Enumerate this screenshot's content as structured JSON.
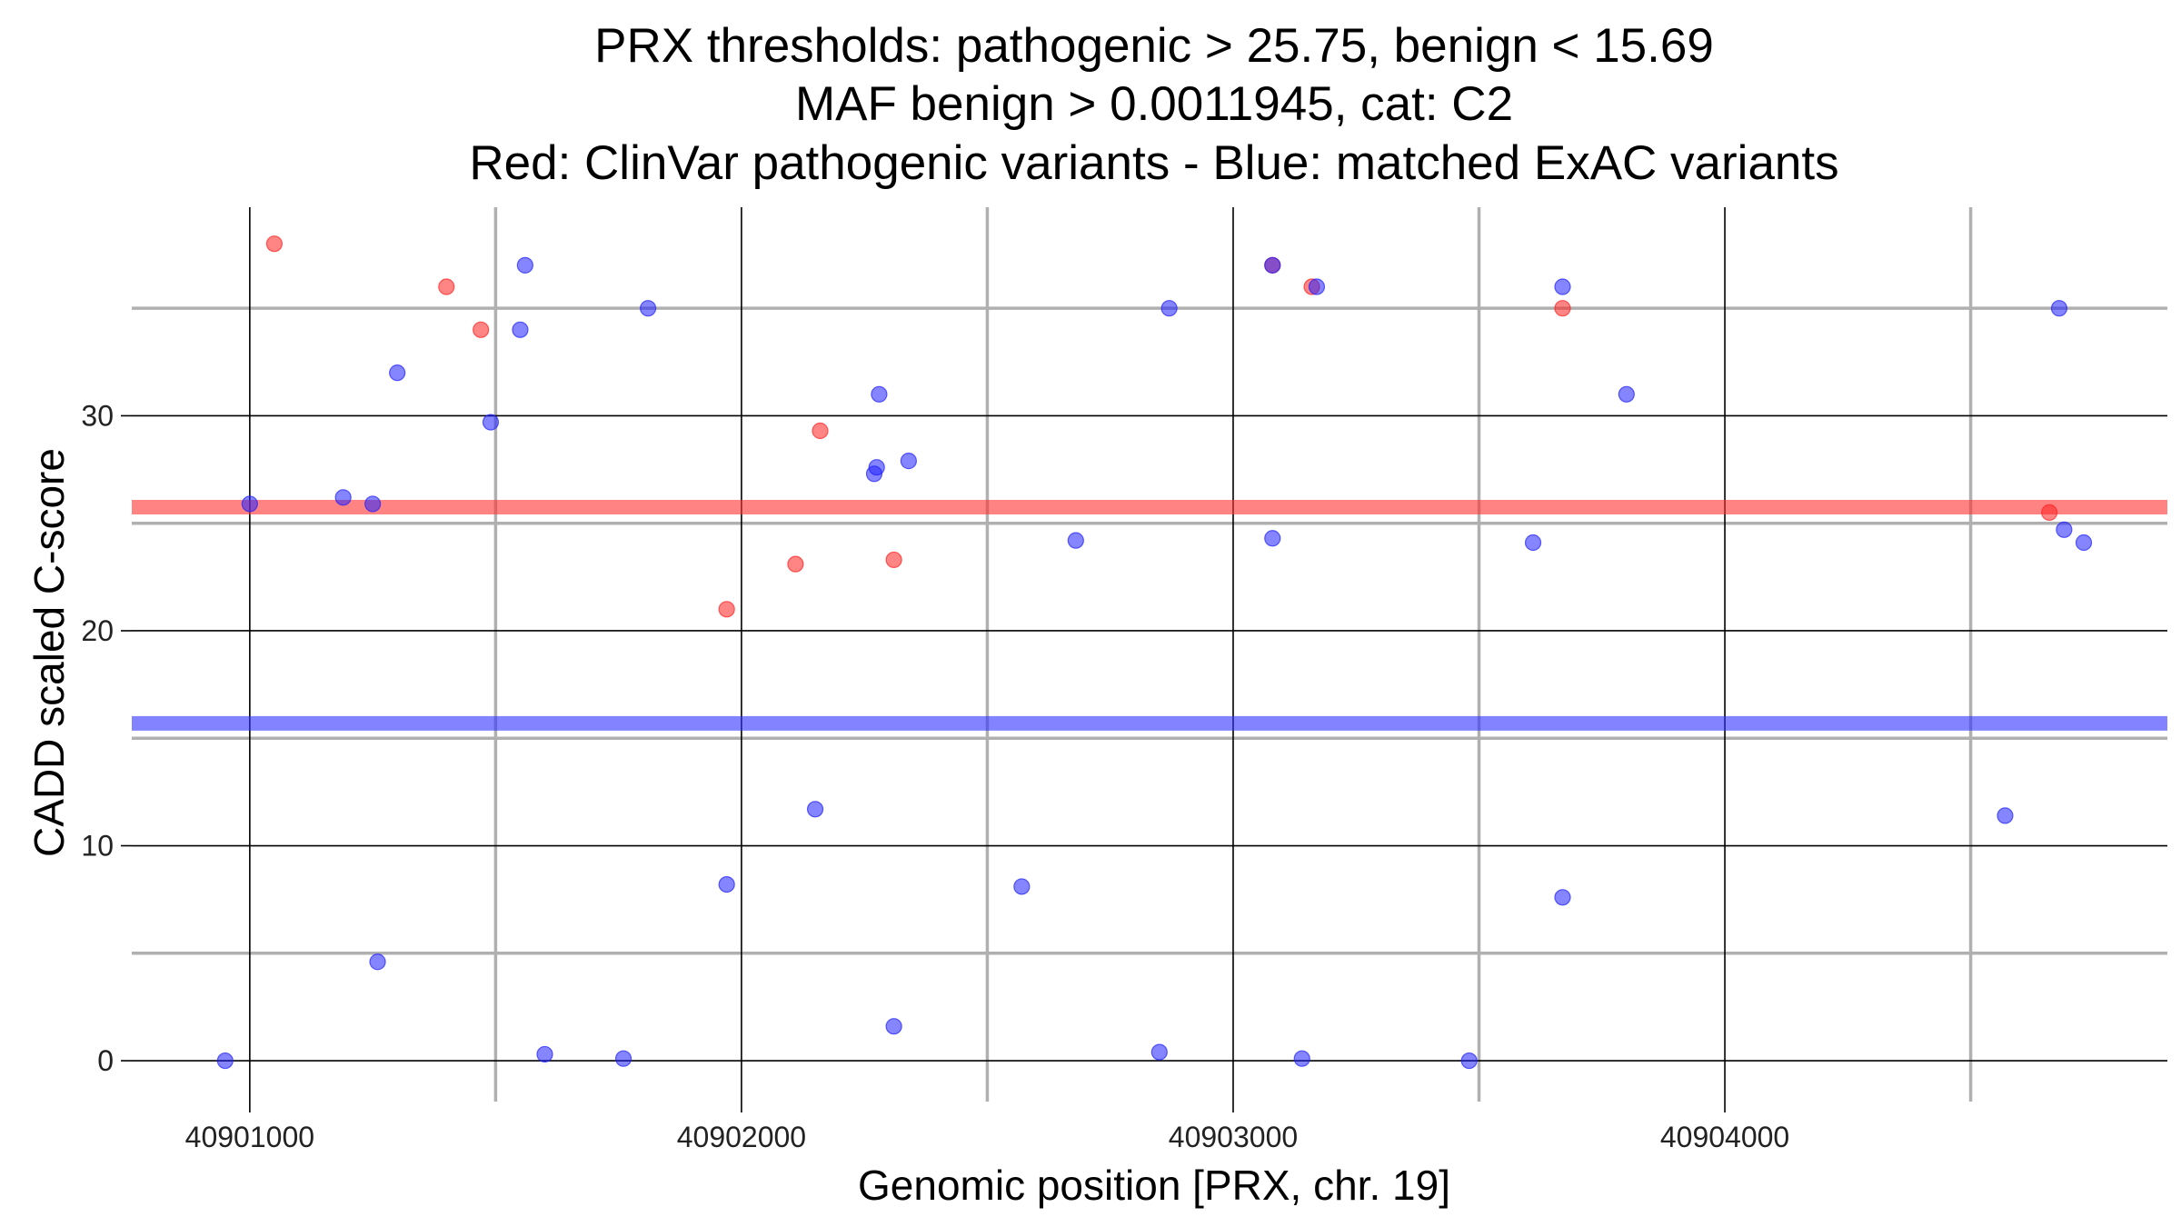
{
  "chart_data": {
    "type": "scatter",
    "title_lines": [
      "PRX thresholds: pathogenic > 25.75, benign < 15.69",
      "MAF benign > 0.0011945, cat: C2",
      "Red: ClinVar pathogenic variants - Blue: matched ExAC variants"
    ],
    "xlabel": "Genomic position [PRX, chr. 19]",
    "ylabel": "CADD scaled C-score",
    "xlim": [
      40900760,
      40904900
    ],
    "ylim": [
      -1.9,
      39.7
    ],
    "x_ticks": [
      40901000,
      40902000,
      40903000,
      40904000
    ],
    "x_tick_labels": [
      "40901000",
      "40902000",
      "40903000",
      "40904000"
    ],
    "x_minor_ticks": [
      40901500,
      40902500,
      40903500,
      40904500
    ],
    "y_ticks": [
      0,
      10,
      20,
      30
    ],
    "y_tick_labels": [
      "0",
      "10",
      "20",
      "30"
    ],
    "y_minor_ticks": [
      5,
      15,
      25,
      35
    ],
    "thresholds": [
      {
        "name": "pathogenic",
        "value": 25.75,
        "color": "#ff3030"
      },
      {
        "name": "benign",
        "value": 15.69,
        "color": "#3030ff"
      }
    ],
    "series": [
      {
        "name": "ClinVar pathogenic",
        "color": "#ff2020",
        "points": [
          {
            "x": 40901050,
            "y": 38.0
          },
          {
            "x": 40901400,
            "y": 36.0
          },
          {
            "x": 40901470,
            "y": 34.0
          },
          {
            "x": 40901970,
            "y": 21.0
          },
          {
            "x": 40902110,
            "y": 23.1
          },
          {
            "x": 40902160,
            "y": 29.3
          },
          {
            "x": 40902310,
            "y": 23.3
          },
          {
            "x": 40903080,
            "y": 37.0
          },
          {
            "x": 40903160,
            "y": 36.0
          },
          {
            "x": 40903670,
            "y": 35.0
          },
          {
            "x": 40904660,
            "y": 25.5
          }
        ]
      },
      {
        "name": "matched ExAC",
        "color": "#2020ff",
        "points": [
          {
            "x": 40900950,
            "y": 0.0
          },
          {
            "x": 40901000,
            "y": 25.9
          },
          {
            "x": 40901190,
            "y": 26.2
          },
          {
            "x": 40901250,
            "y": 25.9
          },
          {
            "x": 40901260,
            "y": 4.6
          },
          {
            "x": 40901300,
            "y": 32.0
          },
          {
            "x": 40901490,
            "y": 29.7
          },
          {
            "x": 40901550,
            "y": 34.0
          },
          {
            "x": 40901560,
            "y": 37.0
          },
          {
            "x": 40901600,
            "y": 0.3
          },
          {
            "x": 40901760,
            "y": 0.1
          },
          {
            "x": 40901810,
            "y": 35.0
          },
          {
            "x": 40901970,
            "y": 8.2
          },
          {
            "x": 40902150,
            "y": 11.7
          },
          {
            "x": 40902270,
            "y": 27.3
          },
          {
            "x": 40902275,
            "y": 27.6
          },
          {
            "x": 40902280,
            "y": 31.0
          },
          {
            "x": 40902310,
            "y": 1.6
          },
          {
            "x": 40902340,
            "y": 27.9
          },
          {
            "x": 40902570,
            "y": 8.1
          },
          {
            "x": 40902680,
            "y": 24.2
          },
          {
            "x": 40902850,
            "y": 0.4
          },
          {
            "x": 40902870,
            "y": 35.0
          },
          {
            "x": 40903080,
            "y": 24.3
          },
          {
            "x": 40903080,
            "y": 37.0
          },
          {
            "x": 40903140,
            "y": 0.1
          },
          {
            "x": 40903170,
            "y": 36.0
          },
          {
            "x": 40903480,
            "y": 0.0
          },
          {
            "x": 40903610,
            "y": 24.1
          },
          {
            "x": 40903670,
            "y": 7.6
          },
          {
            "x": 40903670,
            "y": 36.0
          },
          {
            "x": 40903800,
            "y": 31.0
          },
          {
            "x": 40904570,
            "y": 11.4
          },
          {
            "x": 40904680,
            "y": 35.0
          },
          {
            "x": 40904690,
            "y": 24.7
          },
          {
            "x": 40904730,
            "y": 24.1
          }
        ]
      }
    ]
  }
}
